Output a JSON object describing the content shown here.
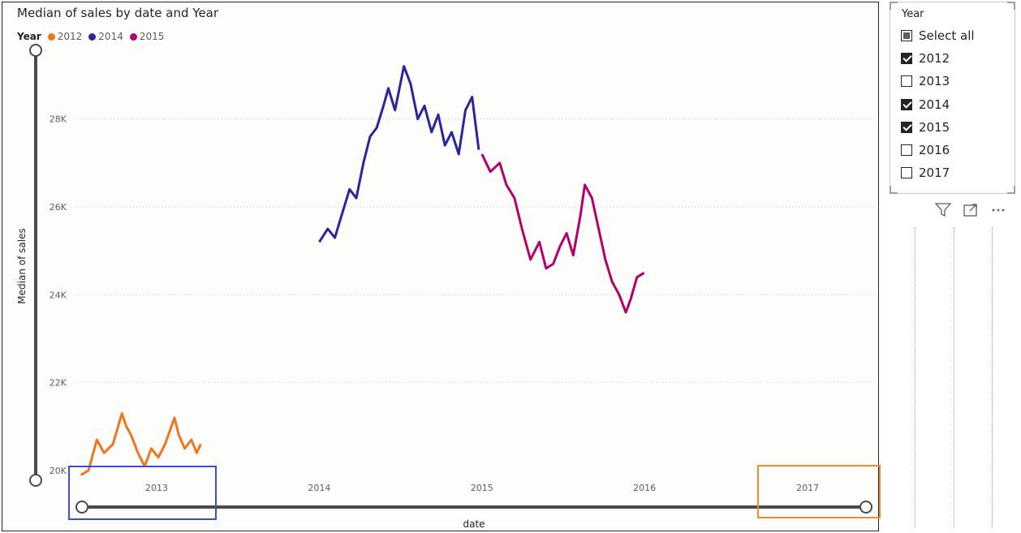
{
  "chart": {
    "title": "Median of sales by date and Year",
    "legend_title": "Year",
    "legend": [
      {
        "label": "2012",
        "color": "#F2741C"
      },
      {
        "label": "2014",
        "color": "#2A259C"
      },
      {
        "label": "2015",
        "color": "#B3006E"
      }
    ],
    "y_axis_title": "Median of sales",
    "x_axis_title": "date",
    "y_ticks": [
      "20K",
      "22K",
      "24K",
      "26K",
      "28K"
    ],
    "x_ticks": [
      "2013",
      "2014",
      "2015",
      "2016",
      "2017"
    ]
  },
  "chart_data": {
    "type": "line",
    "title": "Median of sales by date and Year",
    "xlabel": "date",
    "ylabel": "Median of sales",
    "xlim": [
      "2012-07-01",
      "2017-06-01"
    ],
    "ylim": [
      20000,
      29600
    ],
    "grid": "horizontal dotted",
    "legend_placement": "top-left",
    "series": [
      {
        "name": "2012",
        "color": "#F2741C",
        "points": [
          [
            "2012-07-15",
            19900
          ],
          [
            "2012-08-01",
            20000
          ],
          [
            "2012-08-20",
            20700
          ],
          [
            "2012-09-05",
            20400
          ],
          [
            "2012-09-25",
            20600
          ],
          [
            "2012-10-15",
            21300
          ],
          [
            "2012-10-25",
            21000
          ],
          [
            "2012-11-05",
            20800
          ],
          [
            "2012-11-20",
            20400
          ],
          [
            "2012-12-05",
            20100
          ],
          [
            "2012-12-20",
            20500
          ],
          [
            "2013-01-05",
            20300
          ],
          [
            "2013-01-20",
            20600
          ],
          [
            "2013-02-10",
            21200
          ],
          [
            "2013-02-20",
            20800
          ],
          [
            "2013-03-05",
            20500
          ],
          [
            "2013-03-20",
            20700
          ],
          [
            "2013-04-01",
            20400
          ],
          [
            "2013-04-10",
            20600
          ]
        ]
      },
      {
        "name": "2014",
        "color": "#2A259C",
        "points": [
          [
            "2014-01-01",
            25200
          ],
          [
            "2014-01-20",
            25500
          ],
          [
            "2014-02-05",
            25300
          ],
          [
            "2014-02-20",
            25800
          ],
          [
            "2014-03-10",
            26400
          ],
          [
            "2014-03-25",
            26200
          ],
          [
            "2014-04-10",
            27000
          ],
          [
            "2014-04-25",
            27600
          ],
          [
            "2014-05-10",
            27800
          ],
          [
            "2014-05-25",
            28300
          ],
          [
            "2014-06-05",
            28700
          ],
          [
            "2014-06-20",
            28200
          ],
          [
            "2014-07-10",
            29200
          ],
          [
            "2014-07-25",
            28800
          ],
          [
            "2014-08-10",
            28000
          ],
          [
            "2014-08-25",
            28300
          ],
          [
            "2014-09-10",
            27700
          ],
          [
            "2014-09-25",
            28100
          ],
          [
            "2014-10-10",
            27400
          ],
          [
            "2014-10-25",
            27700
          ],
          [
            "2014-11-10",
            27200
          ],
          [
            "2014-11-25",
            28200
          ],
          [
            "2014-12-10",
            28500
          ],
          [
            "2014-12-25",
            27300
          ]
        ]
      },
      {
        "name": "2015",
        "color": "#B3006E",
        "points": [
          [
            "2015-01-01",
            27200
          ],
          [
            "2015-01-20",
            26800
          ],
          [
            "2015-02-10",
            27000
          ],
          [
            "2015-02-25",
            26500
          ],
          [
            "2015-03-15",
            26200
          ],
          [
            "2015-04-01",
            25500
          ],
          [
            "2015-04-20",
            24800
          ],
          [
            "2015-05-10",
            25200
          ],
          [
            "2015-05-25",
            24600
          ],
          [
            "2015-06-10",
            24700
          ],
          [
            "2015-06-25",
            25100
          ],
          [
            "2015-07-10",
            25400
          ],
          [
            "2015-07-25",
            24900
          ],
          [
            "2015-08-10",
            25800
          ],
          [
            "2015-08-20",
            26500
          ],
          [
            "2015-09-05",
            26200
          ],
          [
            "2015-09-20",
            25500
          ],
          [
            "2015-10-05",
            24800
          ],
          [
            "2015-10-20",
            24300
          ],
          [
            "2015-11-05",
            24000
          ],
          [
            "2015-11-20",
            23600
          ],
          [
            "2015-12-01",
            23900
          ],
          [
            "2015-12-15",
            24400
          ],
          [
            "2015-12-31",
            24500
          ]
        ]
      }
    ]
  },
  "slicer": {
    "title": "Year",
    "items": [
      {
        "label": "Select all",
        "state": "partial"
      },
      {
        "label": "2012",
        "state": "checked"
      },
      {
        "label": "2013",
        "state": "unchecked"
      },
      {
        "label": "2014",
        "state": "checked"
      },
      {
        "label": "2015",
        "state": "checked"
      },
      {
        "label": "2016",
        "state": "unchecked"
      },
      {
        "label": "2017",
        "state": "unchecked"
      }
    ]
  },
  "toolbar": {
    "icons": [
      "filter-icon",
      "focus-mode-icon",
      "more-options-icon"
    ]
  },
  "annotations": [
    {
      "name": "blue-highlight-box",
      "color": "#3D4FC4"
    },
    {
      "name": "orange-highlight-box",
      "color": "#F08A2C"
    }
  ]
}
